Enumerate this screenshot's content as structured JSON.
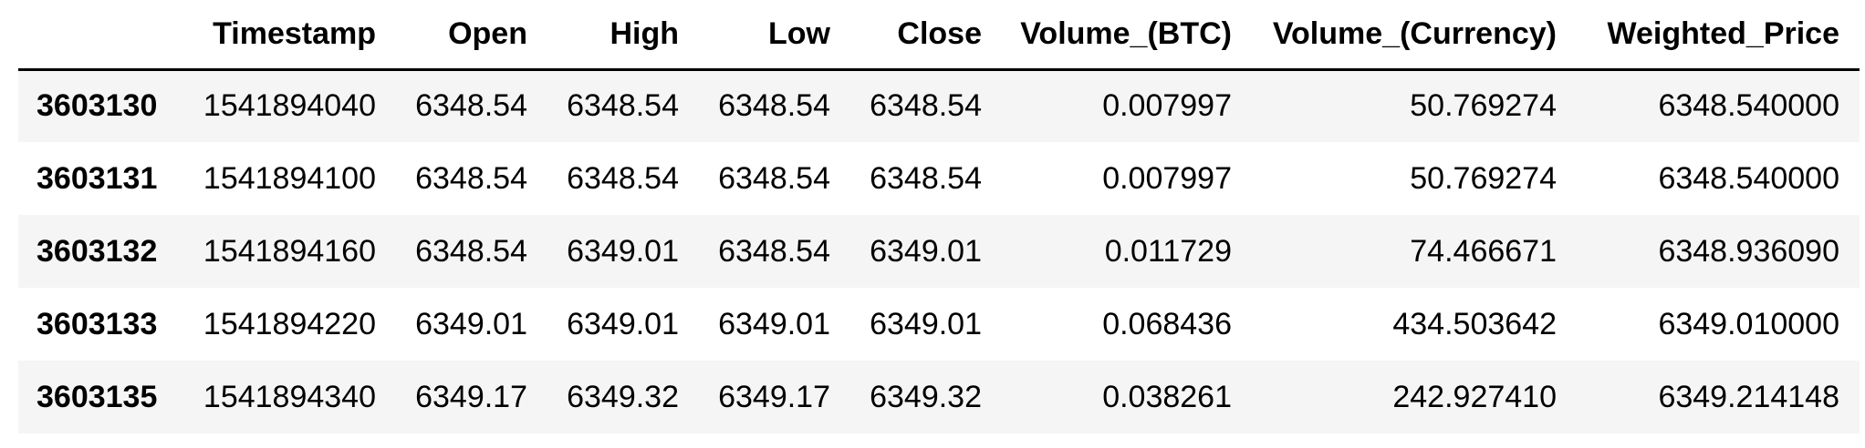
{
  "table": {
    "index_header": "",
    "columns": [
      "Timestamp",
      "Open",
      "High",
      "Low",
      "Close",
      "Volume_(BTC)",
      "Volume_(Currency)",
      "Weighted_Price"
    ],
    "rows": [
      {
        "index": "3603130",
        "cells": [
          "1541894040",
          "6348.54",
          "6348.54",
          "6348.54",
          "6348.54",
          "0.007997",
          "50.769274",
          "6348.540000"
        ]
      },
      {
        "index": "3603131",
        "cells": [
          "1541894100",
          "6348.54",
          "6348.54",
          "6348.54",
          "6348.54",
          "0.007997",
          "50.769274",
          "6348.540000"
        ]
      },
      {
        "index": "3603132",
        "cells": [
          "1541894160",
          "6348.54",
          "6349.01",
          "6348.54",
          "6349.01",
          "0.011729",
          "74.466671",
          "6348.936090"
        ]
      },
      {
        "index": "3603133",
        "cells": [
          "1541894220",
          "6349.01",
          "6349.01",
          "6349.01",
          "6349.01",
          "0.068436",
          "434.503642",
          "6349.010000"
        ]
      },
      {
        "index": "3603135",
        "cells": [
          "1541894340",
          "6349.17",
          "6349.32",
          "6349.17",
          "6349.32",
          "0.038261",
          "242.927410",
          "6349.214148"
        ]
      }
    ]
  },
  "colors": {
    "row_stripe": "#f5f5f5",
    "header_rule": "#000000",
    "text": "#000000"
  }
}
